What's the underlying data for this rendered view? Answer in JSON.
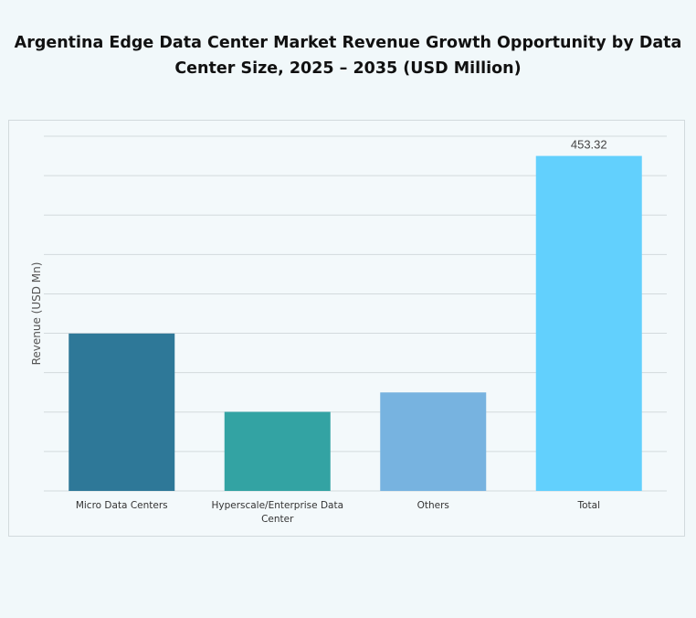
{
  "chart_data": {
    "type": "bar",
    "title": "Argentina Edge Data Center Market Revenue Growth Opportunity by Data Center Size, 2025 – 2035 (USD Million)",
    "xlabel": "",
    "ylabel": "Revenue (USD Mn)",
    "categories": [
      "Micro Data Centers",
      "Hyperscale/Enterprise Data Center",
      "Others",
      "Total"
    ],
    "values": [
      213,
      107,
      133.3,
      453.32
    ],
    "data_labels": [
      "",
      "",
      "",
      "453.32"
    ],
    "colors": [
      "#2e7898",
      "#33a3a3",
      "#77b3e0",
      "#62d0fd"
    ],
    "ylim": [
      0,
      480
    ],
    "grid": true,
    "legend": "none"
  }
}
